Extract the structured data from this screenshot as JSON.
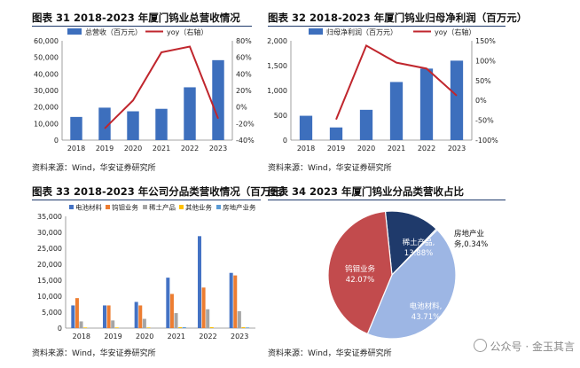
{
  "watermark": "公众号 · 金玉其言",
  "colors": {
    "bar": "#3d6fbd",
    "line": "#c0262d",
    "battery": "#4472c4",
    "tungsten": "#ed7d31",
    "rare_earth": "#a5a5a5",
    "other": "#ffc000",
    "real_estate": "#5b9bd5",
    "pie_battery": "#9db6e4",
    "pie_tungsten": "#c24b4d",
    "pie_rare": "#1f3a6b",
    "pie_real": "#4472c4"
  },
  "chart_data": [
    {
      "type": "bar",
      "title": "图表 31 2018-2023 年厦门钨业总营收情况",
      "source": "资料来源：Wind，华安证券研究所",
      "categories": [
        "2018",
        "2019",
        "2020",
        "2021",
        "2022",
        "2023"
      ],
      "series": [
        {
          "name": "总营收（百万元）",
          "type": "bar",
          "axis": "left",
          "values": [
            14000,
            19600,
            17400,
            18900,
            31900,
            48300
          ]
        },
        {
          "name": "yoy（右轴）",
          "type": "line",
          "axis": "right",
          "values": [
            null,
            -26,
            8,
            66,
            73,
            -14
          ]
        }
      ],
      "ylim": [
        0,
        60000
      ],
      "yticks": [
        "0",
        "10,000",
        "20,000",
        "30,000",
        "40,000",
        "50,000",
        "60,000"
      ],
      "y2lim": [
        -40,
        80
      ],
      "y2ticks": [
        "-40%",
        "-20%",
        "0%",
        "20%",
        "40%",
        "60%",
        "80%"
      ],
      "legend": "top"
    },
    {
      "type": "bar",
      "title": "图表 32 2018-2023 年厦门钨业归母净利润（百万元）",
      "source": "资料来源：Wind，华安证券研究所",
      "categories": [
        "2018",
        "2019",
        "2020",
        "2021",
        "2022",
        "2023"
      ],
      "series": [
        {
          "name": "归母净利润（百万元）",
          "type": "bar",
          "axis": "left",
          "values": [
            490,
            255,
            610,
            1170,
            1440,
            1600
          ]
        },
        {
          "name": "yoy（右轴）",
          "type": "line",
          "axis": "right",
          "values": [
            null,
            -48,
            138,
            95,
            80,
            12
          ]
        }
      ],
      "ylim": [
        0,
        2000
      ],
      "yticks": [
        "0",
        "500",
        "1,000",
        "1,500",
        "2,000"
      ],
      "y2lim": [
        -100,
        150
      ],
      "y2ticks": [
        "-100%",
        "-50%",
        "0%",
        "50%",
        "100%",
        "150%"
      ],
      "legend": "top"
    },
    {
      "type": "bar",
      "title": "图表 33 2018-2023 年公司分品类营收情况（百万元）",
      "source": "资料来源：Wind，华安证券研究所",
      "categories": [
        "2018",
        "2019",
        "2020",
        "2021",
        "2022",
        "2023"
      ],
      "series": [
        {
          "name": "电池材料",
          "values": [
            7100,
            7100,
            8200,
            15800,
            28800,
            17300
          ]
        },
        {
          "name": "钨钼业务",
          "values": [
            9400,
            7100,
            7100,
            10700,
            12700,
            16500
          ]
        },
        {
          "name": "稀土产品",
          "values": [
            2100,
            2400,
            2900,
            4700,
            5900,
            5300
          ]
        },
        {
          "name": "其他业务",
          "values": [
            200,
            200,
            200,
            300,
            300,
            300
          ]
        },
        {
          "name": "房地产业务",
          "values": [
            0,
            0,
            0,
            300,
            0,
            200
          ]
        }
      ],
      "ylim": [
        0,
        35000
      ],
      "yticks": [
        "0",
        "5,000",
        "10,000",
        "15,000",
        "20,000",
        "25,000",
        "30,000",
        "35,000"
      ],
      "legend": "top"
    },
    {
      "type": "pie",
      "title": "图表 34 2023 年厦门钨业分品类营收占比",
      "source": "资料来源：Wind，华安证券研究所",
      "slices": [
        {
          "name": "稀土产品",
          "label": "稀土产品,",
          "pct_label": "13.88%",
          "value": 13.88
        },
        {
          "name": "房地产业务",
          "label": "房地产业",
          "pct_label": "务,0.34%",
          "value": 0.34
        },
        {
          "name": "电池材料",
          "label": "电池材料,",
          "pct_label": "43.71%",
          "value": 43.71
        },
        {
          "name": "钨钼业务",
          "label": "钨钼业务",
          "pct_label": "42.07%",
          "value": 42.07
        }
      ]
    }
  ]
}
